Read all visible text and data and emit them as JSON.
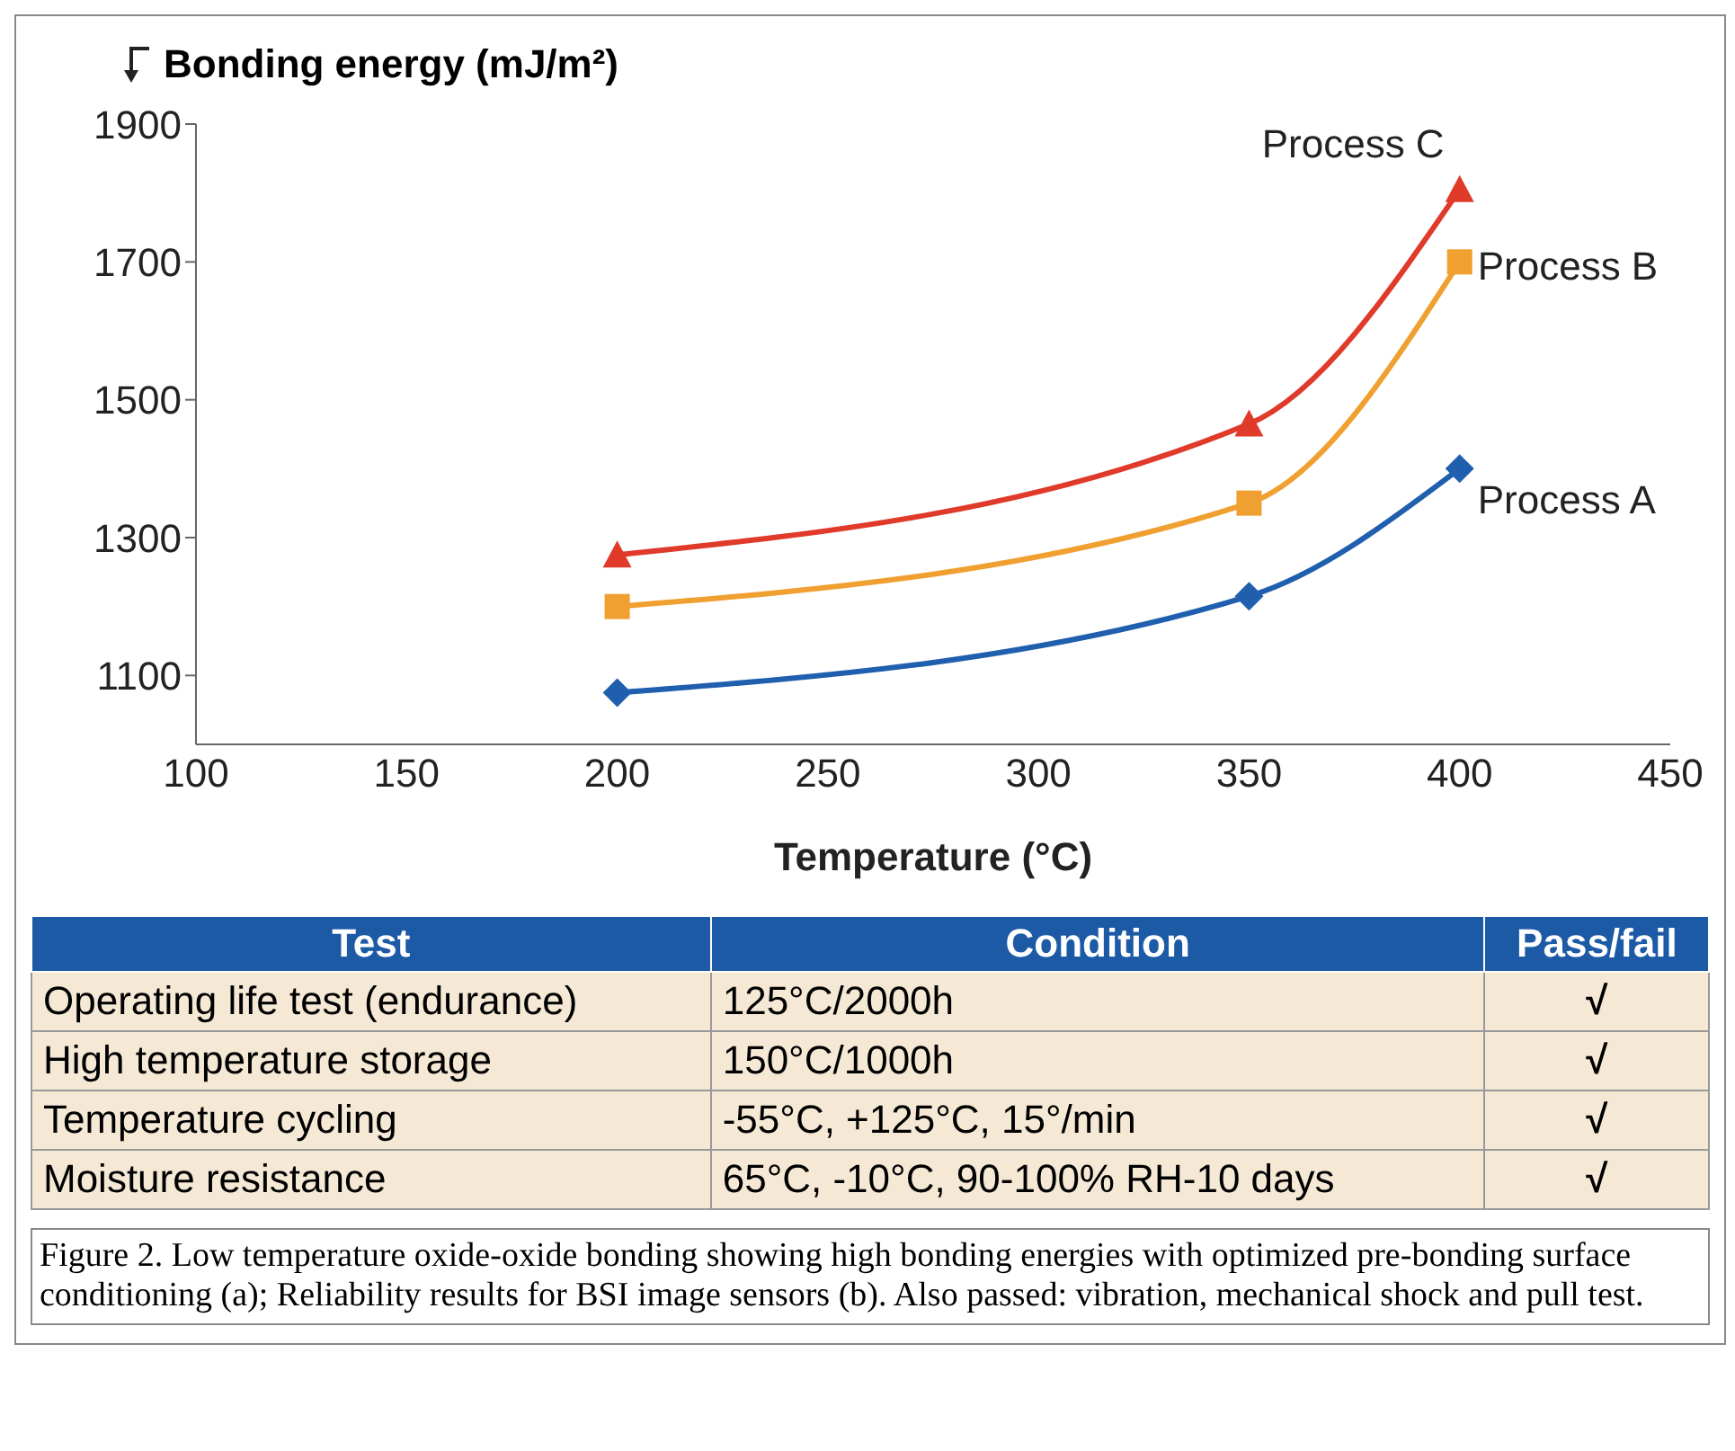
{
  "chart_data": [
    {
      "type": "line",
      "ylabel": "Bonding energy (mJ/m²)",
      "xlabel": "Temperature (°C)",
      "x": [
        200,
        350,
        400
      ],
      "series": [
        {
          "name": "Process A",
          "color": "#1f5fae",
          "values": [
            1075,
            1215,
            1400
          ],
          "marker": "diamond"
        },
        {
          "name": "Process B",
          "color": "#f0a030",
          "values": [
            1200,
            1350,
            1700
          ],
          "marker": "square"
        },
        {
          "name": "Process C",
          "color": "#e03a2a",
          "values": [
            1275,
            1465,
            1805
          ],
          "marker": "triangle"
        }
      ],
      "xlim": [
        100,
        450
      ],
      "xticks": [
        100,
        150,
        200,
        250,
        300,
        350,
        400,
        450
      ],
      "ylim": [
        1000,
        1900
      ],
      "yticks": [
        1100,
        1300,
        1500,
        1700,
        1900
      ],
      "grid": false,
      "line_style": "solid",
      "annotations": [
        "Figure 2. Low temperature oxide-oxide bonding showing high bonding energies with optimized pre-bonding surface conditioning (a); Reliability results for BSI image sensors (b). Also passed: vibration, mechanical shock and pull test."
      ]
    },
    {
      "type": "other",
      "annotations": [
        "Test",
        "Condition",
        "Pass/fail",
        "Operating life test (endurance)",
        "125°C/2000h",
        "√",
        "High temperature storage",
        "150°C/1000h",
        "√",
        "Temperature cycling",
        "-55°C, +125°C, 15°/min",
        "√",
        "Moisture resistance",
        "65°C, -10°C, 90-100% RH-10 days",
        "√"
      ]
    }
  ]
}
